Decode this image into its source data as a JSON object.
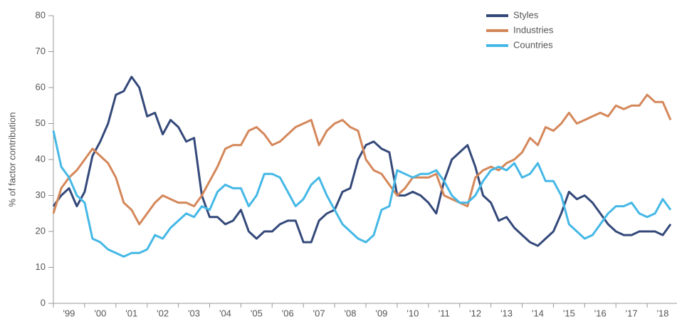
{
  "chart_data": {
    "type": "line",
    "ylabel": "% of factor contribution",
    "x": [
      1999,
      1999.25,
      1999.5,
      1999.75,
      2000,
      2000.25,
      2000.5,
      2000.75,
      2001,
      2001.25,
      2001.5,
      2001.75,
      2002,
      2002.25,
      2002.5,
      2002.75,
      2003,
      2003.25,
      2003.5,
      2003.75,
      2004,
      2004.25,
      2004.5,
      2004.75,
      2005,
      2005.25,
      2005.5,
      2005.75,
      2006,
      2006.25,
      2006.5,
      2006.75,
      2007,
      2007.25,
      2007.5,
      2007.75,
      2008,
      2008.25,
      2008.5,
      2008.75,
      2009,
      2009.25,
      2009.5,
      2009.75,
      2010,
      2010.25,
      2010.5,
      2010.75,
      2011,
      2011.25,
      2011.5,
      2011.75,
      2012,
      2012.25,
      2012.5,
      2012.75,
      2013,
      2013.25,
      2013.5,
      2013.75,
      2014,
      2014.25,
      2014.5,
      2014.75,
      2015,
      2015.25,
      2015.5,
      2015.75,
      2016,
      2016.25,
      2016.5,
      2016.75,
      2017,
      2017.25,
      2017.5,
      2017.75,
      2018,
      2018.25,
      2018.5,
      2018.75
    ],
    "series": [
      {
        "name": "Styles",
        "color": "#34497a",
        "values": [
          27,
          30,
          32,
          27,
          31,
          41,
          45,
          50,
          58,
          59,
          63,
          60,
          52,
          53,
          47,
          51,
          49,
          45,
          46,
          30,
          24,
          24,
          22,
          23,
          26,
          20,
          18,
          20,
          20,
          22,
          23,
          23,
          17,
          17,
          23,
          25,
          26,
          31,
          32,
          40,
          44,
          45,
          43,
          42,
          30,
          30,
          31,
          30,
          28,
          25,
          34,
          40,
          42,
          44,
          38,
          30,
          28,
          23,
          24,
          21,
          19,
          17,
          16,
          18,
          20,
          25,
          31,
          29,
          30,
          28,
          25,
          22,
          20,
          19,
          19,
          20,
          20,
          20,
          19,
          22
        ]
      },
      {
        "name": "Industries",
        "color": "#d4875a",
        "values": [
          25,
          32,
          35,
          37,
          40,
          43,
          41,
          39,
          35,
          28,
          26,
          22,
          25,
          28,
          30,
          29,
          28,
          28,
          27,
          30,
          34,
          38,
          43,
          44,
          44,
          48,
          49,
          47,
          44,
          45,
          47,
          49,
          50,
          51,
          44,
          48,
          50,
          51,
          49,
          48,
          40,
          37,
          36,
          33,
          30,
          32,
          35,
          35,
          35,
          36,
          30,
          29,
          28,
          27,
          35,
          37,
          38,
          37,
          39,
          40,
          42,
          46,
          44,
          49,
          48,
          50,
          53,
          50,
          51,
          52,
          53,
          52,
          55,
          54,
          55,
          55,
          58,
          56,
          56,
          51
        ]
      },
      {
        "name": "Countries",
        "color": "#45b8e6",
        "values": [
          48,
          38,
          35,
          30,
          28,
          18,
          17,
          15,
          14,
          13,
          14,
          14,
          15,
          19,
          18,
          21,
          23,
          25,
          24,
          27,
          26,
          31,
          33,
          32,
          32,
          27,
          30,
          36,
          36,
          35,
          31,
          27,
          29,
          33,
          35,
          30,
          26,
          22,
          20,
          18,
          17,
          19,
          26,
          27,
          37,
          36,
          35,
          36,
          36,
          37,
          34,
          30,
          28,
          28,
          30,
          34,
          37,
          38,
          37,
          39,
          35,
          36,
          39,
          34,
          34,
          30,
          22,
          20,
          18,
          19,
          22,
          25,
          27,
          27,
          28,
          25,
          24,
          25,
          29,
          26
        ]
      }
    ],
    "xlim": [
      1999,
      2019
    ],
    "xticks": [
      {
        "value": 1999,
        "label": "'99"
      },
      {
        "value": 2000,
        "label": "'00"
      },
      {
        "value": 2001,
        "label": "'01"
      },
      {
        "value": 2002,
        "label": "'02"
      },
      {
        "value": 2003,
        "label": "'03"
      },
      {
        "value": 2004,
        "label": "'04"
      },
      {
        "value": 2005,
        "label": "'05"
      },
      {
        "value": 2006,
        "label": "'06"
      },
      {
        "value": 2007,
        "label": "'07"
      },
      {
        "value": 2008,
        "label": "'08"
      },
      {
        "value": 2009,
        "label": "'09"
      },
      {
        "value": 2010,
        "label": "'10"
      },
      {
        "value": 2011,
        "label": "'11"
      },
      {
        "value": 2012,
        "label": "'12"
      },
      {
        "value": 2013,
        "label": "'13"
      },
      {
        "value": 2014,
        "label": "'14"
      },
      {
        "value": 2015,
        "label": "'15"
      },
      {
        "value": 2016,
        "label": "'16"
      },
      {
        "value": 2017,
        "label": "'17"
      },
      {
        "value": 2018,
        "label": "'18"
      }
    ],
    "ylim": [
      0,
      80
    ],
    "yticks": [
      0,
      10,
      20,
      30,
      40,
      50,
      60,
      70,
      80
    ],
    "grid": false,
    "legend": "top-right"
  }
}
